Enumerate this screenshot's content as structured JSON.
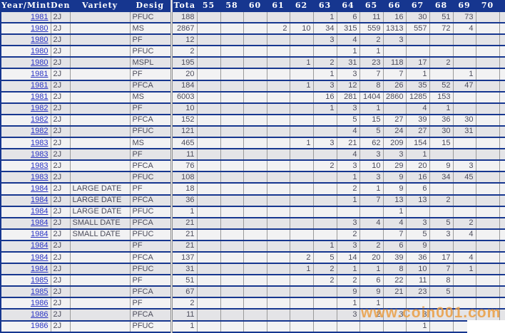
{
  "header": {
    "columns": [
      "Year/Mint",
      "Den",
      "Variety",
      "Desig",
      "Tota"
    ],
    "grades": [
      "55",
      "58",
      "60",
      "61",
      "62",
      "63",
      "64",
      "65",
      "66",
      "67",
      "68",
      "69",
      "70"
    ]
  },
  "table": {
    "rows": [
      {
        "year": "1981",
        "den": "2J",
        "variety": "",
        "desig": "PFUC",
        "total": "188",
        "grades": [
          "",
          "",
          "",
          "",
          "",
          "1",
          "6",
          "11",
          "16",
          "30",
          "51",
          "73",
          ""
        ],
        "link": true
      },
      {
        "year": "1980",
        "den": "2J",
        "variety": "",
        "desig": "MS",
        "total": "2867",
        "grades": [
          "",
          "",
          "",
          "2",
          "10",
          "34",
          "315",
          "559",
          "1313",
          "557",
          "72",
          "4",
          ""
        ],
        "link": true
      },
      {
        "year": "1980",
        "den": "2J",
        "variety": "",
        "desig": "PF",
        "total": "12",
        "grades": [
          "",
          "",
          "",
          "",
          "",
          "3",
          "4",
          "2",
          "3",
          "",
          "",
          "",
          ""
        ],
        "link": true
      },
      {
        "year": "1980",
        "den": "2J",
        "variety": "",
        "desig": "PFUC",
        "total": "2",
        "grades": [
          "",
          "",
          "",
          "",
          "",
          "",
          "1",
          "1",
          "",
          "",
          "",
          "",
          ""
        ],
        "link": true
      },
      {
        "year": "1980",
        "den": "2J",
        "variety": "",
        "desig": "MSPL",
        "total": "195",
        "grades": [
          "",
          "",
          "",
          "",
          "1",
          "2",
          "31",
          "23",
          "118",
          "17",
          "2",
          "",
          ""
        ],
        "link": true
      },
      {
        "year": "1981",
        "den": "2J",
        "variety": "",
        "desig": "PF",
        "total": "20",
        "grades": [
          "",
          "",
          "",
          "",
          "",
          "1",
          "3",
          "7",
          "7",
          "1",
          "",
          "1",
          ""
        ],
        "link": true
      },
      {
        "year": "1981",
        "den": "2J",
        "variety": "",
        "desig": "PFCA",
        "total": "184",
        "grades": [
          "",
          "",
          "",
          "",
          "1",
          "3",
          "12",
          "8",
          "26",
          "35",
          "52",
          "47",
          ""
        ],
        "link": true
      },
      {
        "year": "1981",
        "den": "2J",
        "variety": "",
        "desig": "MS",
        "total": "6003",
        "grades": [
          "",
          "",
          "",
          "",
          "",
          "16",
          "281",
          "1404",
          "2860",
          "1285",
          "153",
          "",
          ""
        ],
        "link": true
      },
      {
        "year": "1982",
        "den": "2J",
        "variety": "",
        "desig": "PF",
        "total": "10",
        "grades": [
          "",
          "",
          "",
          "",
          "",
          "1",
          "3",
          "1",
          "",
          "4",
          "1",
          "",
          ""
        ],
        "link": true
      },
      {
        "year": "1982",
        "den": "2J",
        "variety": "",
        "desig": "PFCA",
        "total": "152",
        "grades": [
          "",
          "",
          "",
          "",
          "",
          "",
          "5",
          "15",
          "27",
          "39",
          "36",
          "30",
          ""
        ],
        "link": true
      },
      {
        "year": "1982",
        "den": "2J",
        "variety": "",
        "desig": "PFUC",
        "total": "121",
        "grades": [
          "",
          "",
          "",
          "",
          "",
          "",
          "4",
          "5",
          "24",
          "27",
          "30",
          "31",
          ""
        ],
        "link": true
      },
      {
        "year": "1983",
        "den": "2J",
        "variety": "",
        "desig": "MS",
        "total": "465",
        "grades": [
          "",
          "",
          "",
          "",
          "1",
          "3",
          "21",
          "62",
          "209",
          "154",
          "15",
          "",
          ""
        ],
        "link": true
      },
      {
        "year": "1983",
        "den": "2J",
        "variety": "",
        "desig": "PF",
        "total": "11",
        "grades": [
          "",
          "",
          "",
          "",
          "",
          "",
          "4",
          "3",
          "3",
          "1",
          "",
          "",
          ""
        ],
        "link": true
      },
      {
        "year": "1983",
        "den": "2J",
        "variety": "",
        "desig": "PFCA",
        "total": "76",
        "grades": [
          "",
          "",
          "",
          "",
          "",
          "2",
          "3",
          "10",
          "29",
          "20",
          "9",
          "3",
          ""
        ],
        "link": true
      },
      {
        "year": "1983",
        "den": "2J",
        "variety": "",
        "desig": "PFUC",
        "total": "108",
        "grades": [
          "",
          "",
          "",
          "",
          "",
          "",
          "1",
          "3",
          "9",
          "16",
          "34",
          "45",
          ""
        ],
        "link": true
      },
      {
        "year": "1984",
        "den": "2J",
        "variety": "LARGE DATE",
        "desig": "PF",
        "total": "18",
        "grades": [
          "",
          "",
          "",
          "",
          "",
          "",
          "2",
          "1",
          "9",
          "6",
          "",
          "",
          ""
        ],
        "link": true
      },
      {
        "year": "1984",
        "den": "2J",
        "variety": "LARGE DATE",
        "desig": "PFCA",
        "total": "36",
        "grades": [
          "",
          "",
          "",
          "",
          "",
          "",
          "1",
          "7",
          "13",
          "13",
          "2",
          "",
          ""
        ],
        "link": true
      },
      {
        "year": "1984",
        "den": "2J",
        "variety": "LARGE DATE",
        "desig": "PFUC",
        "total": "1",
        "grades": [
          "",
          "",
          "",
          "",
          "",
          "",
          "",
          "",
          "1",
          "",
          "",
          "",
          ""
        ],
        "link": true
      },
      {
        "year": "1984",
        "den": "2J",
        "variety": "SMALL DATE",
        "desig": "PFCA",
        "total": "21",
        "grades": [
          "",
          "",
          "",
          "",
          "",
          "",
          "3",
          "4",
          "4",
          "3",
          "5",
          "2",
          ""
        ],
        "link": true
      },
      {
        "year": "1984",
        "den": "2J",
        "variety": "SMALL DATE",
        "desig": "PFUC",
        "total": "21",
        "grades": [
          "",
          "",
          "",
          "",
          "",
          "",
          "2",
          "",
          "7",
          "5",
          "3",
          "4",
          ""
        ],
        "link": true
      },
      {
        "year": "1984",
        "den": "2J",
        "variety": "",
        "desig": "PF",
        "total": "21",
        "grades": [
          "",
          "",
          "",
          "",
          "",
          "1",
          "3",
          "2",
          "6",
          "9",
          "",
          "",
          ""
        ],
        "link": true
      },
      {
        "year": "1984",
        "den": "2J",
        "variety": "",
        "desig": "PFCA",
        "total": "137",
        "grades": [
          "",
          "",
          "",
          "",
          "2",
          "5",
          "14",
          "20",
          "39",
          "36",
          "17",
          "4",
          ""
        ],
        "link": true
      },
      {
        "year": "1984",
        "den": "2J",
        "variety": "",
        "desig": "PFUC",
        "total": "31",
        "grades": [
          "",
          "",
          "",
          "",
          "1",
          "2",
          "1",
          "1",
          "8",
          "10",
          "7",
          "1",
          ""
        ],
        "link": true
      },
      {
        "year": "1985",
        "den": "2J",
        "variety": "",
        "desig": "PF",
        "total": "51",
        "grades": [
          "",
          "",
          "",
          "",
          "",
          "2",
          "2",
          "6",
          "22",
          "11",
          "8",
          "",
          ""
        ],
        "link": true
      },
      {
        "year": "1985",
        "den": "2J",
        "variety": "",
        "desig": "PFCA",
        "total": "67",
        "grades": [
          "",
          "",
          "",
          "",
          "",
          "",
          "9",
          "9",
          "21",
          "23",
          "5",
          "",
          ""
        ],
        "link": true
      },
      {
        "year": "1986",
        "den": "2J",
        "variety": "",
        "desig": "PF",
        "total": "2",
        "grades": [
          "",
          "",
          "",
          "",
          "",
          "",
          "1",
          "1",
          "",
          "",
          "",
          "",
          ""
        ],
        "link": true
      },
      {
        "year": "1986",
        "den": "2J",
        "variety": "",
        "desig": "PFCA",
        "total": "11",
        "grades": [
          "",
          "",
          "",
          "",
          "",
          "",
          "3",
          "2",
          "3",
          "3",
          "",
          "",
          ""
        ],
        "link": true
      },
      {
        "year": "1986",
        "den": "2J",
        "variety": "",
        "desig": "PFUC",
        "total": "1",
        "grades": [
          "",
          "",
          "",
          "",
          "",
          "",
          "",
          "",
          "",
          "1",
          "",
          "",
          ""
        ],
        "link": false
      }
    ]
  },
  "watermark": {
    "text": "www.coin001.com"
  },
  "colors": {
    "header_bg": "#16368f",
    "row_separator": "#16368f",
    "gridline": "#9a9a9a",
    "year_link_blue": "#2b35c4",
    "row_shade_dark": "#e4e4e7",
    "row_shade_light": "#f2f2f3",
    "watermark_orange": "#eb9e43"
  }
}
